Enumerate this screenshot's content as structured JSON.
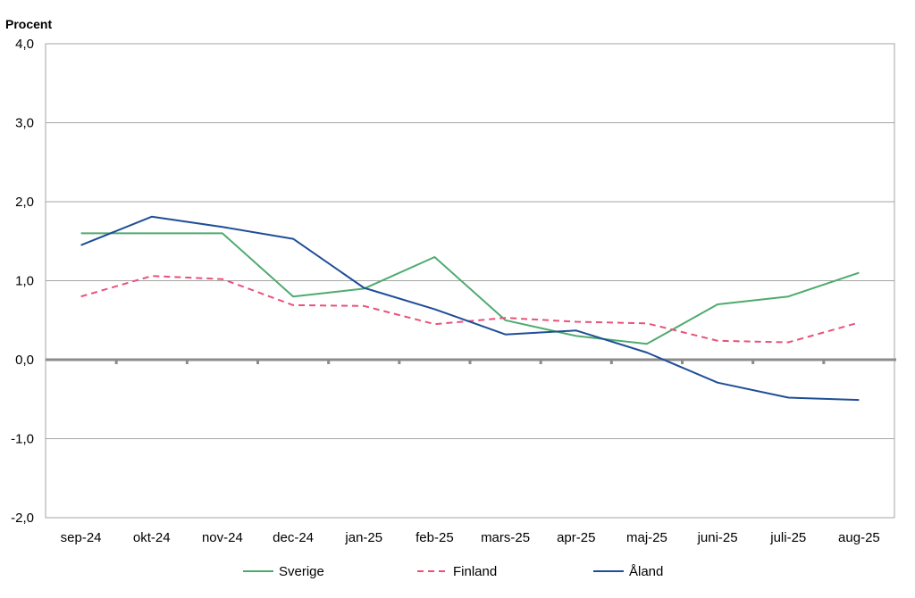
{
  "chart_data": {
    "type": "line",
    "title": "",
    "xlabel": "",
    "ylabel": "Procent",
    "ylim": [
      -2.0,
      4.0
    ],
    "yticks": [
      "4,0",
      "3,0",
      "2,0",
      "1,0",
      "0,0",
      "-1,0",
      "-2,0"
    ],
    "ytick_values": [
      4,
      3,
      2,
      1,
      0,
      -1,
      -2
    ],
    "grid": true,
    "legend": "bottom",
    "categories": [
      "sep-24",
      "okt-24",
      "nov-24",
      "dec-24",
      "jan-25",
      "feb-25",
      "mars-25",
      "apr-25",
      "maj-25",
      "juni-25",
      "juli-25",
      "aug-25"
    ],
    "series": [
      {
        "name": "Sverige",
        "color": "#4eab6e",
        "style": "solid",
        "values": [
          1.6,
          1.6,
          1.6,
          0.8,
          0.9,
          1.3,
          0.5,
          0.3,
          0.2,
          0.7,
          0.8,
          1.1
        ]
      },
      {
        "name": "Finland",
        "color": "#e8527a",
        "style": "dashed",
        "values": [
          0.8,
          1.06,
          1.02,
          0.69,
          0.68,
          0.45,
          0.53,
          0.48,
          0.46,
          0.24,
          0.22,
          0.47
        ]
      },
      {
        "name": "Åland",
        "color": "#1f4e96",
        "style": "solid",
        "values": [
          1.45,
          1.81,
          1.68,
          1.53,
          0.91,
          0.64,
          0.32,
          0.37,
          0.09,
          -0.29,
          -0.48,
          -0.51
        ]
      }
    ]
  }
}
